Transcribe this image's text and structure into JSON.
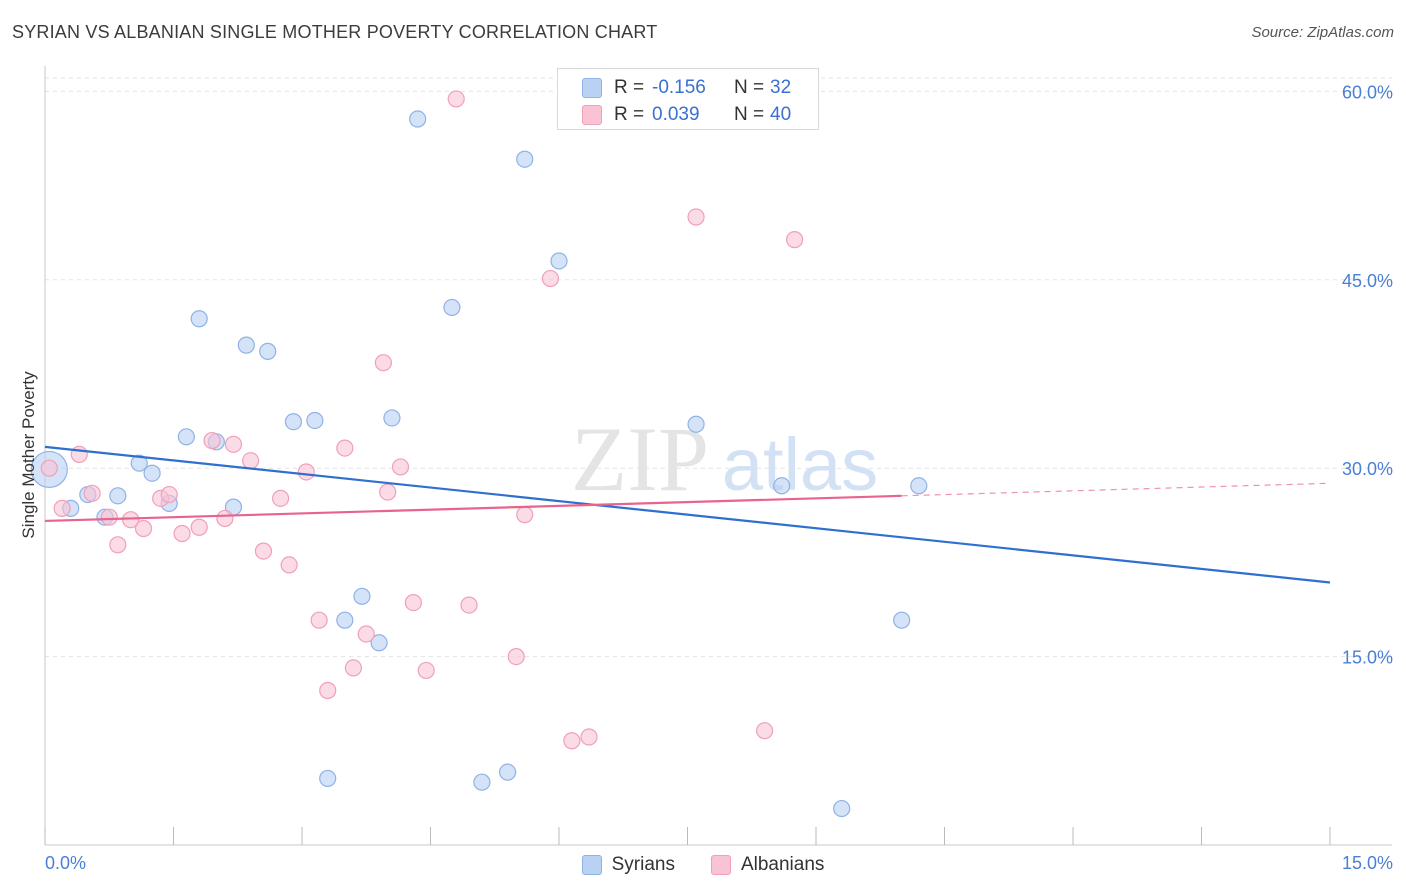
{
  "title": "SYRIAN VS ALBANIAN SINGLE MOTHER POVERTY CORRELATION CHART",
  "source": "Source: ZipAtlas.com",
  "watermark": {
    "zip": "ZIP",
    "atlas": "atlas"
  },
  "colors": {
    "syrian_fill": "#b9d1f3",
    "syrian_stroke": "#8fb2e6",
    "syrian_line": "#2f6fd0",
    "albanian_fill": "#f9c3d3",
    "albanian_stroke": "#f0a0b8",
    "albanian_line": "#e8638d",
    "axis_label": "#4a7fd6",
    "grid": "#e3e3e3"
  },
  "legend_top": {
    "rows": [
      {
        "series": "Syrians",
        "r_label": "R =",
        "r_value": "-0.156",
        "n_label": "N =",
        "n_value": "32"
      },
      {
        "series": "Albanians",
        "r_label": "R =",
        "r_value": "0.039",
        "n_label": "N =",
        "n_value": "40"
      }
    ]
  },
  "legend_bottom": [
    {
      "label": "Syrians"
    },
    {
      "label": "Albanians"
    }
  ],
  "chart_data": {
    "type": "scatter",
    "title": "SYRIAN VS ALBANIAN SINGLE MOTHER POVERTY CORRELATION CHART",
    "xlabel": "",
    "ylabel": "Single Mother Poverty",
    "xlim": [
      0,
      15
    ],
    "ylim": [
      0,
      62.5
    ],
    "x_tick_labels": [
      {
        "value": 0,
        "label": "0.0%"
      },
      {
        "value": 15,
        "label": "15.0%"
      }
    ],
    "y_tick_labels": [
      {
        "value": 15,
        "label": "15.0%"
      },
      {
        "value": 30,
        "label": "30.0%"
      },
      {
        "value": 45,
        "label": "45.0%"
      },
      {
        "value": 60,
        "label": "60.0%"
      }
    ],
    "y_gridlines": [
      15,
      30,
      45,
      60
    ],
    "x_minor_ticks": [
      0,
      1.5,
      3,
      4.5,
      6,
      7.5,
      9,
      10.5,
      12,
      13.5,
      15
    ],
    "series": [
      {
        "name": "Syrians",
        "r": -0.156,
        "n": 32,
        "trend": {
          "x": [
            0,
            15
          ],
          "y": [
            31.7,
            20.9
          ],
          "solid_until": 15
        },
        "points": [
          {
            "x": 0.05,
            "y": 29.9,
            "big": true
          },
          {
            "x": 0.3,
            "y": 26.8
          },
          {
            "x": 0.5,
            "y": 27.9
          },
          {
            "x": 0.7,
            "y": 26.1
          },
          {
            "x": 0.85,
            "y": 27.8
          },
          {
            "x": 1.1,
            "y": 30.4
          },
          {
            "x": 1.25,
            "y": 29.6
          },
          {
            "x": 1.45,
            "y": 27.2
          },
          {
            "x": 1.65,
            "y": 32.5
          },
          {
            "x": 1.8,
            "y": 41.9
          },
          {
            "x": 2.0,
            "y": 32.1
          },
          {
            "x": 2.2,
            "y": 26.9
          },
          {
            "x": 2.35,
            "y": 39.8
          },
          {
            "x": 2.6,
            "y": 39.3
          },
          {
            "x": 2.9,
            "y": 33.7
          },
          {
            "x": 3.15,
            "y": 33.8
          },
          {
            "x": 3.3,
            "y": 5.3
          },
          {
            "x": 3.5,
            "y": 17.9
          },
          {
            "x": 3.7,
            "y": 19.8
          },
          {
            "x": 3.9,
            "y": 16.1
          },
          {
            "x": 4.05,
            "y": 34.0
          },
          {
            "x": 4.35,
            "y": 57.8
          },
          {
            "x": 4.75,
            "y": 42.8
          },
          {
            "x": 5.1,
            "y": 5.0
          },
          {
            "x": 5.4,
            "y": 5.8
          },
          {
            "x": 5.6,
            "y": 54.6
          },
          {
            "x": 6.0,
            "y": 46.5
          },
          {
            "x": 7.6,
            "y": 33.5
          },
          {
            "x": 8.6,
            "y": 28.6
          },
          {
            "x": 9.3,
            "y": 2.9
          },
          {
            "x": 10.0,
            "y": 17.9
          },
          {
            "x": 10.2,
            "y": 28.6
          }
        ]
      },
      {
        "name": "Albanians",
        "r": 0.039,
        "n": 40,
        "trend": {
          "x": [
            0,
            15
          ],
          "y": [
            25.8,
            28.8
          ],
          "solid_until": 10.0
        },
        "points": [
          {
            "x": 0.05,
            "y": 30.0
          },
          {
            "x": 0.2,
            "y": 26.8
          },
          {
            "x": 0.4,
            "y": 31.1
          },
          {
            "x": 0.55,
            "y": 28.0
          },
          {
            "x": 0.75,
            "y": 26.1
          },
          {
            "x": 0.85,
            "y": 23.9
          },
          {
            "x": 1.0,
            "y": 25.9
          },
          {
            "x": 1.15,
            "y": 25.2
          },
          {
            "x": 1.35,
            "y": 27.6
          },
          {
            "x": 1.45,
            "y": 27.9
          },
          {
            "x": 1.6,
            "y": 24.8
          },
          {
            "x": 1.8,
            "y": 25.3
          },
          {
            "x": 1.95,
            "y": 32.2
          },
          {
            "x": 2.1,
            "y": 26.0
          },
          {
            "x": 2.2,
            "y": 31.9
          },
          {
            "x": 2.4,
            "y": 30.6
          },
          {
            "x": 2.55,
            "y": 23.4
          },
          {
            "x": 2.75,
            "y": 27.6
          },
          {
            "x": 2.85,
            "y": 22.3
          },
          {
            "x": 3.05,
            "y": 29.7
          },
          {
            "x": 3.2,
            "y": 17.9
          },
          {
            "x": 3.3,
            "y": 12.3
          },
          {
            "x": 3.5,
            "y": 31.6
          },
          {
            "x": 3.6,
            "y": 14.1
          },
          {
            "x": 3.75,
            "y": 16.8
          },
          {
            "x": 3.95,
            "y": 38.4
          },
          {
            "x": 4.0,
            "y": 28.1
          },
          {
            "x": 4.15,
            "y": 30.1
          },
          {
            "x": 4.3,
            "y": 19.3
          },
          {
            "x": 4.45,
            "y": 13.9
          },
          {
            "x": 4.8,
            "y": 59.4
          },
          {
            "x": 4.95,
            "y": 19.1
          },
          {
            "x": 5.5,
            "y": 15.0
          },
          {
            "x": 5.6,
            "y": 26.3
          },
          {
            "x": 5.9,
            "y": 45.1
          },
          {
            "x": 6.15,
            "y": 8.3
          },
          {
            "x": 6.35,
            "y": 8.6
          },
          {
            "x": 7.6,
            "y": 50.0
          },
          {
            "x": 8.4,
            "y": 9.1
          },
          {
            "x": 8.75,
            "y": 48.2
          }
        ]
      }
    ]
  }
}
